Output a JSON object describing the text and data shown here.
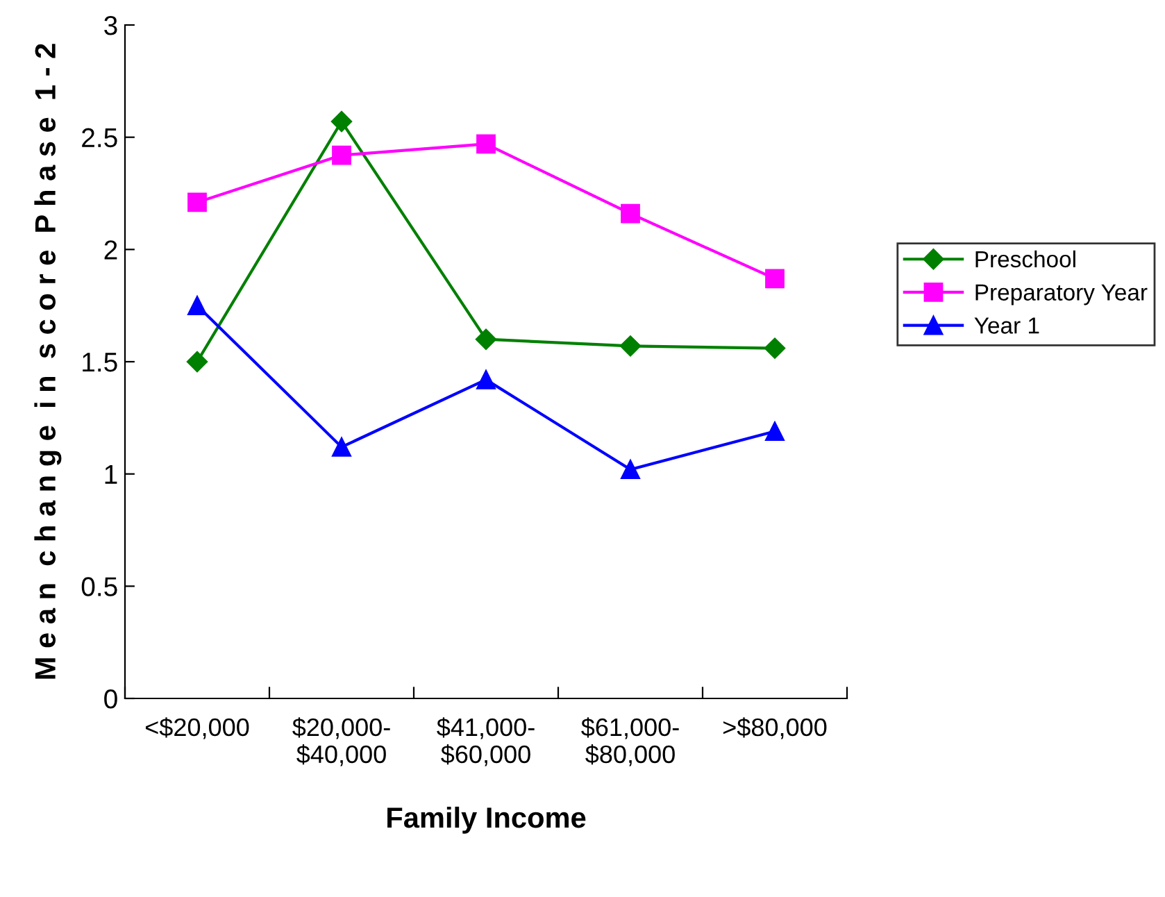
{
  "chart_data": {
    "type": "line",
    "xlabel": "Family Income",
    "ylabel": "M e a n  c h a n g e  i n  s c o r e  P h a s e  1 - 2",
    "categories": [
      "<$20,000",
      "$20,000-\n$40,000",
      "$41,000-\n$60,000",
      "$61,000-\n$80,000",
      ">$80,000"
    ],
    "series": [
      {
        "name": "Preschool",
        "color": "#008000",
        "marker": "diamond",
        "values": [
          1.5,
          2.57,
          1.6,
          1.57,
          1.56
        ]
      },
      {
        "name": "Preparatory Year",
        "color": "#ff00ff",
        "marker": "square",
        "values": [
          2.21,
          2.42,
          2.47,
          2.16,
          1.87
        ]
      },
      {
        "name": "Year 1",
        "color": "#0000ff",
        "marker": "triangle",
        "values": [
          1.75,
          1.12,
          1.42,
          1.02,
          1.19
        ]
      }
    ],
    "ylim": [
      0,
      3
    ],
    "yticks": [
      0,
      0.5,
      1,
      1.5,
      2,
      2.5,
      3
    ],
    "grid": false,
    "legend": "right",
    "line_style": "solid"
  }
}
